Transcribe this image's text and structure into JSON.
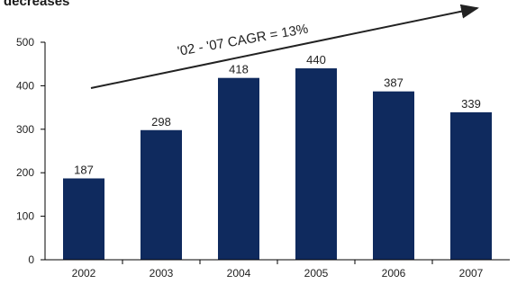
{
  "heading_fragment": "decreases",
  "annotation": "'02 - '07 CAGR = 13%",
  "colors": {
    "bar": "#0f2a5e",
    "axis": "#000000",
    "text": "#222222"
  },
  "chart_data": {
    "type": "bar",
    "categories": [
      "2002",
      "2003",
      "2004",
      "2005",
      "2006",
      "2007"
    ],
    "values": [
      187,
      298,
      418,
      440,
      387,
      339
    ],
    "data_labels": [
      "187",
      "298",
      "418",
      "440",
      "387",
      "339"
    ],
    "yticks": [
      0,
      100,
      200,
      300,
      400,
      500
    ],
    "ytick_labels": [
      "0",
      "100",
      "200",
      "300",
      "400",
      "500"
    ],
    "ylim": [
      0,
      500
    ],
    "grid": false,
    "legend": "none",
    "title": "",
    "xlabel": "",
    "ylabel": ""
  }
}
